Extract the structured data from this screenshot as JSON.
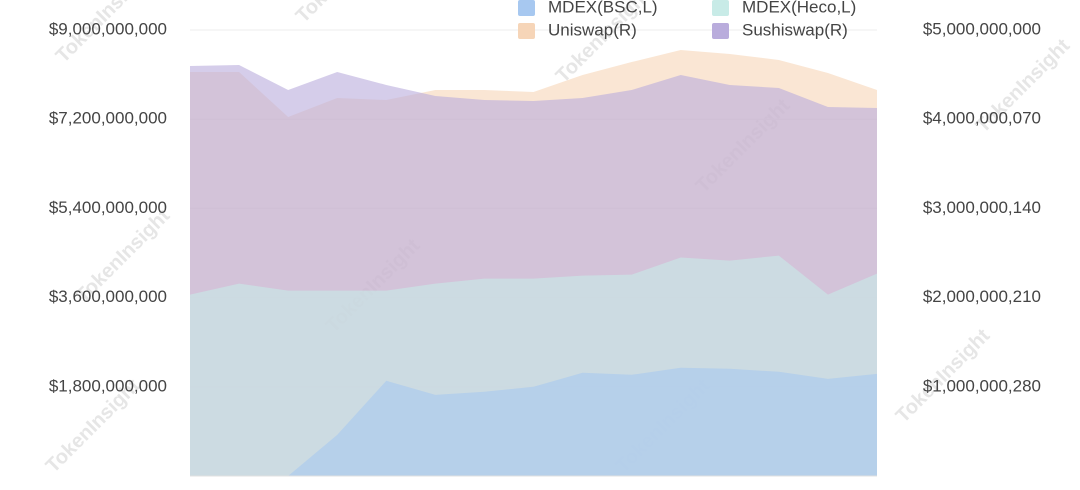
{
  "chart_data": {
    "type": "area",
    "watermark": "TokenInsight",
    "categories": [
      null,
      null,
      null,
      null,
      null,
      null,
      null,
      null,
      null,
      null,
      null,
      null,
      null,
      null,
      null
    ],
    "series": [
      {
        "name": "MDEX(BSC,L)",
        "color": "#a7c8f0",
        "axis": "y",
        "values": [
          0,
          0,
          0,
          829000000,
          1921000000,
          1638000000,
          1699000000,
          1800000000,
          2083000000,
          2042000000,
          2184000000,
          2163000000,
          2103000000,
          1961000000,
          2062000000
        ]
      },
      {
        "name": "MDEX(Heco,L)",
        "color": "#c8ebe7",
        "axis": "y",
        "values": [
          3660000000,
          3882000000,
          3741000000,
          3741000000,
          3741000000,
          3882000000,
          3983000000,
          3983000000,
          4044000000,
          4064000000,
          4408000000,
          4347000000,
          4448000000,
          3660000000,
          4084000000
        ]
      },
      {
        "name": "Uniswap(R)",
        "color": "#f6d5b8",
        "axis": "y2",
        "values": [
          4529000000,
          4529000000,
          4025000000,
          4238000000,
          4215000000,
          4327000000,
          4327000000,
          4305000000,
          4496000000,
          4641000000,
          4776000000,
          4731000000,
          4664000000,
          4518000000,
          4327000000
        ]
      },
      {
        "name": "Sushiswap(R)",
        "color": "#b9acdc",
        "axis": "y2",
        "values": [
          4597000000,
          4608000000,
          4327000000,
          4529000000,
          4384000000,
          4260000000,
          4215000000,
          4204000000,
          4238000000,
          4327000000,
          4496000000,
          4384000000,
          4350000000,
          4137000000,
          4126000000
        ]
      }
    ],
    "ylim": [
      0,
      9000000000
    ],
    "yticks": [
      {
        "value": 1800000000,
        "label": "$1,800,000,000"
      },
      {
        "value": 3600000000,
        "label": "$3,600,000,000"
      },
      {
        "value": 5400000000,
        "label": "$5,400,000,000"
      },
      {
        "value": 7200000000,
        "label": "$7,200,000,000"
      },
      {
        "value": 9000000000,
        "label": "$9,000,000,000"
      }
    ],
    "y2lim": [
      0,
      5000000000
    ],
    "y2ticks": [
      {
        "value": 1000000280,
        "label": "$1,000,000,280"
      },
      {
        "value": 2000000210,
        "label": "$2,000,000,210"
      },
      {
        "value": 3000000140,
        "label": "$3,000,000,140"
      },
      {
        "value": 4000000070,
        "label": "$4,000,000,070"
      },
      {
        "value": 5000000000,
        "label": "$5,000,000,000"
      }
    ],
    "grid": true,
    "legend": "top-right"
  }
}
